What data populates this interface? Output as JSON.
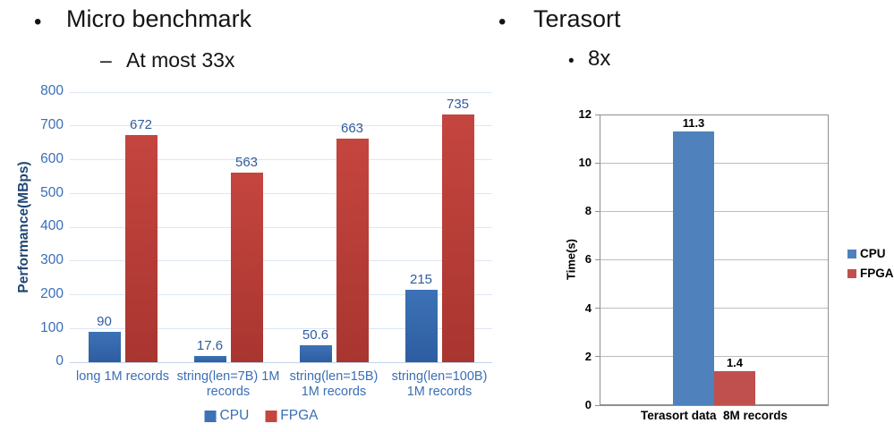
{
  "headings": {
    "left_bullet": "•",
    "left_title": "Micro benchmark",
    "left_sub_dash": "–",
    "left_sub": "At most 33x",
    "right_bullet": "•",
    "right_title": "Terasort",
    "right_sub_bullet": "•",
    "right_sub": "8x"
  },
  "chart_data": [
    {
      "id": "micro-benchmark-chart",
      "type": "bar",
      "title": "",
      "xlabel": "",
      "ylabel": "Performance(MBps)",
      "ylim": [
        0,
        800
      ],
      "ytick_step": 100,
      "grid": true,
      "legend_position": "bottom",
      "categories": [
        "long 1M records",
        "string(len=7B) 1M\nrecords",
        "string(len=15B)\n1M records",
        "string(len=100B)\n1M records"
      ],
      "series": [
        {
          "name": "CPU",
          "color": "#3d72b6",
          "color2": "#2e5da1",
          "values": [
            90,
            17.6,
            50.6,
            215
          ]
        },
        {
          "name": "FPGA",
          "color": "#c5453f",
          "color2": "#a93530",
          "values": [
            672,
            563,
            663,
            735
          ]
        }
      ],
      "data_labels": [
        "90",
        "17.6",
        "50.6",
        "215",
        "672",
        "563",
        "663",
        "735"
      ],
      "text_color": "#3a6fb5",
      "label_color": "#2f5c9e",
      "ylabel_color": "#1f4673",
      "grid_color": "#dce7f3",
      "axis_color": "#c3d2e7"
    },
    {
      "id": "terasort-chart",
      "type": "bar",
      "title": "",
      "xlabel": "",
      "ylabel": "Time(s)",
      "ylim": [
        0,
        12
      ],
      "ytick_step": 2,
      "grid": true,
      "legend_position": "right",
      "categories": [
        "Terasort data  8M records"
      ],
      "series": [
        {
          "name": "CPU",
          "color": "#4f81bd",
          "color2": "",
          "values": [
            11.3
          ]
        },
        {
          "name": "FPGA",
          "color": "#c0504d",
          "color2": "",
          "values": [
            1.4
          ]
        }
      ],
      "data_labels": [
        "11.3",
        "1.4"
      ],
      "text_color": "#000000",
      "label_color": "#000000",
      "ylabel_color": "#000000",
      "grid_color": "#bcbcbc",
      "axis_color": "#6e6e6e",
      "border_color": "#8f8f8f"
    }
  ]
}
